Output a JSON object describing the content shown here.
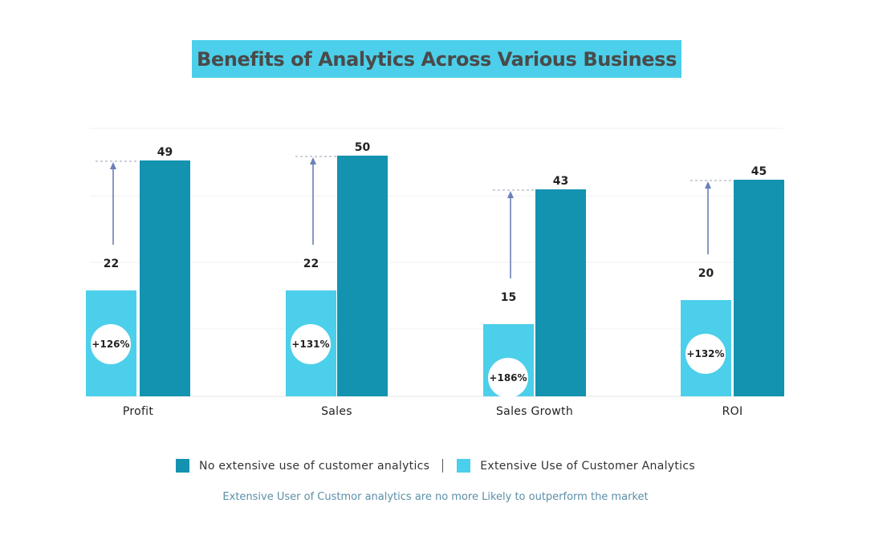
{
  "title": "Benefits of Analytics Across Various Business",
  "chart_data": {
    "type": "bar",
    "title": "Benefits of Analytics Across Various Business",
    "categories": [
      "Profit",
      "Sales",
      "Sales Growth",
      "ROI"
    ],
    "series": [
      {
        "name": "Extensive Use of Customer Analytics",
        "values": [
          22,
          22,
          15,
          20
        ],
        "color": "#4ccfea"
      },
      {
        "name": "No extensive use of customer analytics",
        "values": [
          49,
          50,
          43,
          45
        ],
        "color": "#1393b0"
      }
    ],
    "increase_labels": [
      "+126%",
      "+131%",
      "+186%",
      "+132%"
    ],
    "xlabel": "",
    "ylabel": "",
    "ylim": [
      0,
      55
    ],
    "grid": true
  },
  "legend": {
    "items": [
      {
        "label": "No extensive use of customer analytics",
        "color": "#1393b0"
      },
      {
        "label": "Extensive Use of Customer Analytics",
        "color": "#4ccfea"
      }
    ]
  },
  "footnote": "Extensive User of Custmor analytics are no more Likely to outperform the market",
  "colors": {
    "accent": "#4ccfea",
    "dark_bar": "#1393b0",
    "arrow": "#6b7fb8",
    "title_text": "#4a4a4a"
  }
}
